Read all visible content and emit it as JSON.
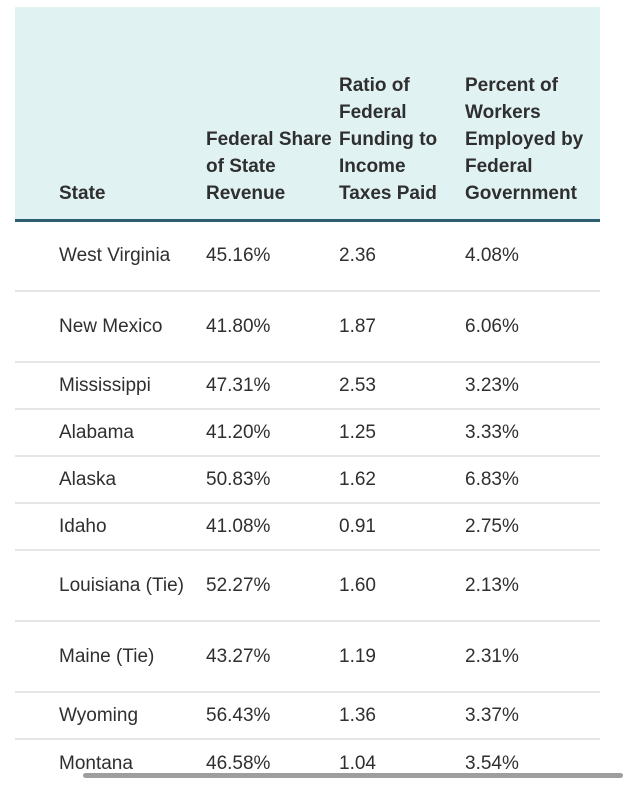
{
  "headers": {
    "state": "State",
    "federal_share": "Federal Share of State Revenue",
    "ratio": "Ratio of Federal Funding to Income Taxes Paid",
    "workers": "Percent of Workers Employed by Federal Government"
  },
  "rows": [
    {
      "state": "West Virginia",
      "federal_share": "45.16%",
      "ratio": "2.36",
      "workers": "4.08%"
    },
    {
      "state": "New Mexico",
      "federal_share": "41.80%",
      "ratio": "1.87",
      "workers": "6.06%"
    },
    {
      "state": "Mississippi",
      "federal_share": "47.31%",
      "ratio": "2.53",
      "workers": "3.23%"
    },
    {
      "state": "Alabama",
      "federal_share": "41.20%",
      "ratio": "1.25",
      "workers": "3.33%"
    },
    {
      "state": "Alaska",
      "federal_share": "50.83%",
      "ratio": "1.62",
      "workers": "6.83%"
    },
    {
      "state": "Idaho",
      "federal_share": "41.08%",
      "ratio": "0.91",
      "workers": "2.75%"
    },
    {
      "state": "Louisiana (Tie)",
      "federal_share": "52.27%",
      "ratio": "1.60",
      "workers": "2.13%"
    },
    {
      "state": "Maine (Tie)",
      "federal_share": "43.27%",
      "ratio": "1.19",
      "workers": "2.31%"
    },
    {
      "state": "Wyoming",
      "federal_share": "56.43%",
      "ratio": "1.36",
      "workers": "3.37%"
    },
    {
      "state": "Montana",
      "federal_share": "46.58%",
      "ratio": "1.04",
      "workers": "3.54%"
    }
  ]
}
